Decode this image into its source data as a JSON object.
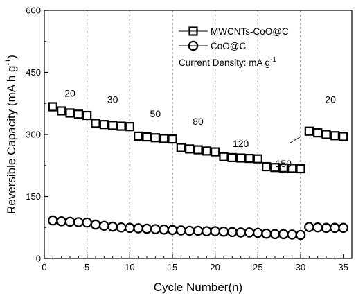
{
  "chart_data": {
    "type": "scatter",
    "xlabel": "Cycle Number(n)",
    "ylabel": "Reversible Capacity (mA h g",
    "ylabel_sup": "-1",
    "ylabel_tail": ")",
    "xlim": [
      0,
      36
    ],
    "ylim": [
      0,
      600
    ],
    "xticks": [
      0,
      5,
      10,
      15,
      20,
      25,
      30,
      35
    ],
    "yticks": [
      0,
      150,
      300,
      450,
      600
    ],
    "x_tick_labels": [
      "0",
      "5",
      "10",
      "15",
      "20",
      "25",
      "30",
      "35"
    ],
    "y_tick_labels": [
      "0",
      "150",
      "300",
      "450",
      "600"
    ],
    "rate_boundaries": [
      5,
      10,
      15,
      20,
      25,
      30
    ],
    "rate_labels": [
      {
        "text": "20",
        "x": 3,
        "y": 400
      },
      {
        "text": "30",
        "x": 8,
        "y": 385
      },
      {
        "text": "50",
        "x": 13,
        "y": 350
      },
      {
        "text": "80",
        "x": 18,
        "y": 332
      },
      {
        "text": "120",
        "x": 23,
        "y": 278
      },
      {
        "text": "150",
        "x": 28,
        "y": 230
      },
      {
        "text": "20",
        "x": 33.5,
        "y": 385
      }
    ],
    "legend": {
      "position": "top-right",
      "current_density_label": "Current Density: mA g",
      "current_density_sup": "-1"
    },
    "series": [
      {
        "name": "MWCNTs-CoO@C",
        "marker": "square",
        "x": [
          1,
          2,
          3,
          4,
          5,
          6,
          7,
          8,
          9,
          10,
          11,
          12,
          13,
          14,
          15,
          16,
          17,
          18,
          19,
          20,
          21,
          22,
          23,
          24,
          25,
          26,
          27,
          28,
          29,
          30,
          31,
          32,
          33,
          34,
          35
        ],
        "values": [
          367,
          357,
          352,
          349,
          346,
          327,
          324,
          322,
          320,
          319,
          296,
          294,
          292,
          290,
          289,
          268,
          265,
          263,
          260,
          258,
          246,
          244,
          243,
          242,
          241,
          222,
          220,
          219,
          218,
          217,
          308,
          304,
          300,
          297,
          295
        ]
      },
      {
        "name": "CoO@C",
        "marker": "circle",
        "x": [
          1,
          2,
          3,
          4,
          5,
          6,
          7,
          8,
          9,
          10,
          11,
          12,
          13,
          14,
          15,
          16,
          17,
          18,
          19,
          20,
          21,
          22,
          23,
          24,
          25,
          26,
          27,
          28,
          29,
          30,
          31,
          32,
          33,
          34,
          35
        ],
        "values": [
          92,
          90,
          89,
          88,
          87,
          82,
          79,
          77,
          75,
          74,
          73,
          72,
          71,
          70,
          69,
          68,
          67,
          67,
          66,
          66,
          65,
          64,
          63,
          63,
          62,
          60,
          59,
          59,
          58,
          57,
          76,
          75,
          74,
          74,
          74
        ]
      }
    ]
  }
}
